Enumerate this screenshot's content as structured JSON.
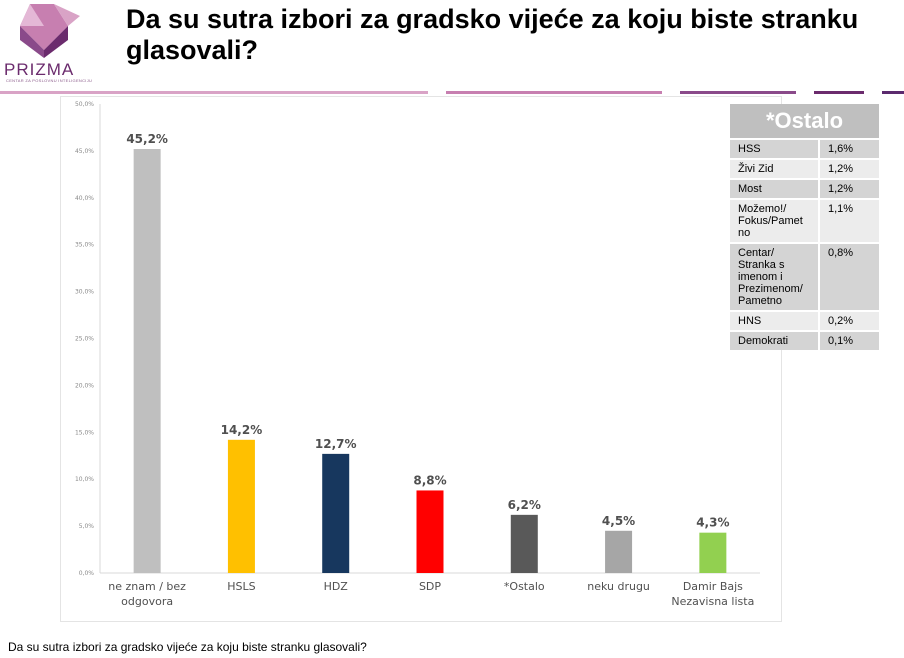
{
  "logo": {
    "name": "PRIZMA",
    "tagline": "CENTAR ZA POSLOVNU INTELIGENCIJU"
  },
  "title": "Da su sutra izbori za gradsko vijeće za koju biste stranku glasovali?",
  "caption": "Da su sutra izbori za gradsko vijeće za koju biste stranku glasovali?",
  "colors": {
    "rule_segments": [
      "#d9a3c6",
      "#c77fb0",
      "#8a4a8a",
      "#6b2b6d",
      "#5b2a6e"
    ],
    "bars": [
      "#bfbfbf",
      "#ffc000",
      "#17375e",
      "#ff0000",
      "#595959",
      "#a6a6a6",
      "#92d050"
    ]
  },
  "chart_data": {
    "type": "bar",
    "categories": [
      "ne znam / bez odgovora",
      "HSLS",
      "HDZ",
      "SDP",
      "*Ostalo",
      "neku drugu",
      "Damir Bajs Nezavisna lista"
    ],
    "category_lines": [
      [
        "ne znam / bez",
        "odgovora"
      ],
      [
        "HSLS"
      ],
      [
        "HDZ"
      ],
      [
        "SDP"
      ],
      [
        "*Ostalo"
      ],
      [
        "neku drugu"
      ],
      [
        "Damir Bajs",
        "Nezavisna lista"
      ]
    ],
    "values": [
      45.2,
      14.2,
      12.7,
      8.8,
      6.2,
      4.5,
      4.3
    ],
    "value_labels": [
      "45,2%",
      "14,2%",
      "12,7%",
      "8,8%",
      "6,2%",
      "4,5%",
      "4,3%"
    ],
    "yticks": [
      0,
      5,
      10,
      15,
      20,
      25,
      30,
      35,
      40,
      45,
      50
    ],
    "ytick_labels": [
      "0,0%",
      "5,0%",
      "10,0%",
      "15,0%",
      "20,0%",
      "25,0%",
      "30,0%",
      "35,0%",
      "40,0%",
      "45,0%",
      "50,0%"
    ],
    "ylim": [
      0,
      50
    ],
    "grid": false,
    "xlabel": "",
    "ylabel": ""
  },
  "ostalo_table": {
    "title": "*Ostalo",
    "rows": [
      {
        "party": "HSS",
        "value": "1,6%"
      },
      {
        "party": "Živi Zid",
        "value": "1,2%"
      },
      {
        "party": "Most",
        "value": "1,2%"
      },
      {
        "party": "Možemo!/ Fokus/Pamet no",
        "value": "1,1%"
      },
      {
        "party": "Centar/ Stranka s imenom i Prezimenom/ Pametno",
        "value": "0,8%"
      },
      {
        "party": "HNS",
        "value": "0,2%"
      },
      {
        "party": "Demokrati",
        "value": "0,1%"
      }
    ]
  }
}
